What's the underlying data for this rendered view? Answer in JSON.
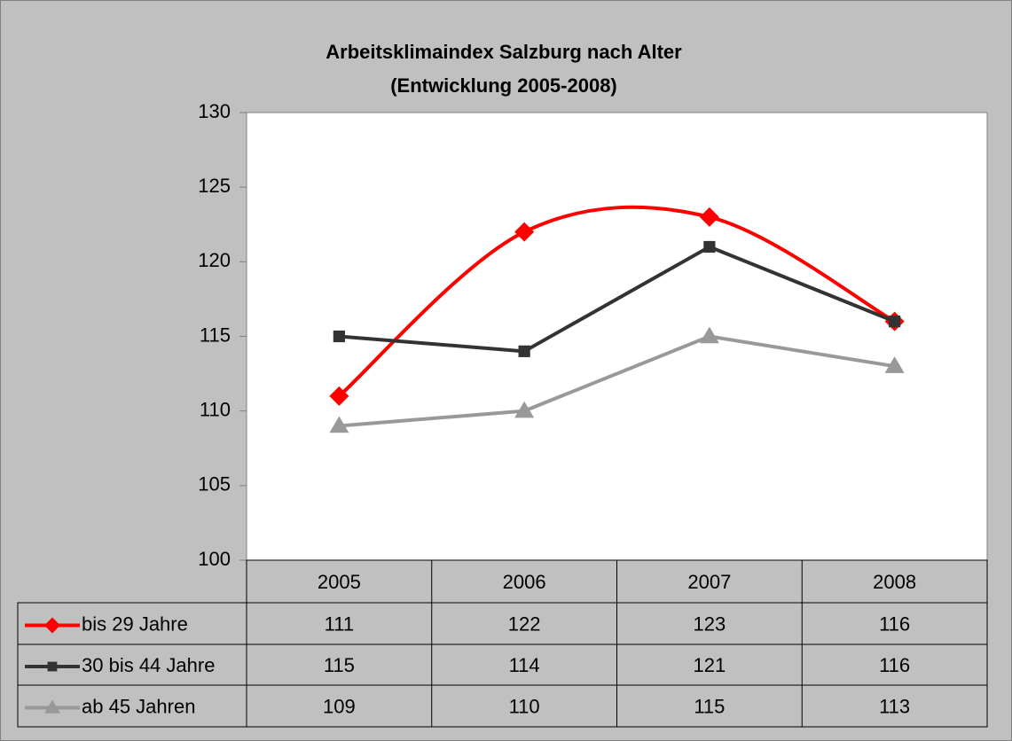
{
  "chart_data": {
    "type": "line",
    "title": "Arbeitsklimaindex Salzburg nach Alter",
    "subtitle": "(Entwicklung 2005-2008)",
    "categories": [
      "2005",
      "2006",
      "2007",
      "2008"
    ],
    "series": [
      {
        "name": "bis 29 Jahre",
        "color": "#ff0000",
        "marker": "diamond",
        "smooth": true,
        "values": [
          111,
          122,
          123,
          116
        ]
      },
      {
        "name": "30 bis 44 Jahre",
        "color": "#333333",
        "marker": "square",
        "smooth": false,
        "values": [
          115,
          114,
          121,
          116
        ]
      },
      {
        "name": "ab 45 Jahren",
        "color": "#999999",
        "marker": "triangle",
        "smooth": false,
        "values": [
          109,
          110,
          115,
          113
        ]
      }
    ],
    "ylim": [
      100,
      130
    ],
    "yticks": [
      100,
      105,
      110,
      115,
      120,
      125,
      130
    ],
    "grid": false,
    "data_table": true
  }
}
